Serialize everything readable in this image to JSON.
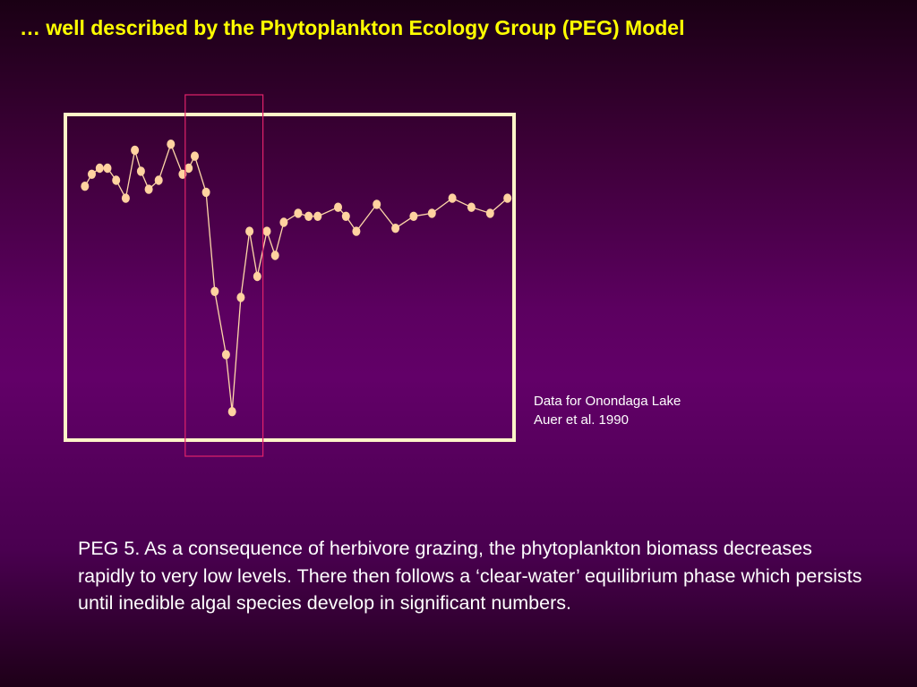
{
  "slide": {
    "title": "… well described by the Phytoplankton Ecology Group (PEG) Model",
    "caption_line1": "Data for Onondaga Lake",
    "caption_line2": "Auer et al. 1990",
    "body": "PEG 5. As a consequence of herbivore grazing, the phytoplankton biomass decreases rapidly to very low levels.  There then follows a ‘clear-water’ equilibrium phase which persists until inedible algal species develop in significant numbers."
  },
  "colors": {
    "title": "#ffff00",
    "frame": "#fff5c8",
    "line": "#ffd7a8",
    "marker": "#ffd2a0",
    "highlight": "#e0226a"
  },
  "chart_data": {
    "type": "line",
    "axes_visible": false,
    "grid": false,
    "title": "",
    "xlabel": "",
    "ylabel": "",
    "xlim": [
      0,
      100
    ],
    "ylim": [
      0,
      100
    ],
    "highlight_x_range": [
      24.5,
      42.4
    ],
    "x": [
      1.4,
      3.0,
      4.8,
      6.6,
      8.6,
      10.8,
      12.9,
      14.3,
      16.1,
      18.4,
      21.2,
      23.9,
      25.3,
      26.7,
      29.3,
      31.3,
      33.9,
      35.3,
      37.3,
      39.3,
      41.1,
      43.3,
      45.2,
      47.2,
      50.5,
      52.9,
      55.0,
      59.7,
      61.5,
      63.9,
      68.6,
      72.9,
      77.1,
      81.3,
      86.0,
      90.4,
      94.7,
      98.7
    ],
    "y": [
      80,
      84,
      86,
      86,
      82,
      76,
      92,
      85,
      79,
      82,
      94,
      84,
      86,
      90,
      78,
      45,
      24,
      5,
      43,
      65,
      50,
      65,
      57,
      68,
      71,
      70,
      70,
      73,
      70,
      65,
      74,
      66,
      70,
      71,
      76,
      73,
      71,
      76
    ]
  }
}
